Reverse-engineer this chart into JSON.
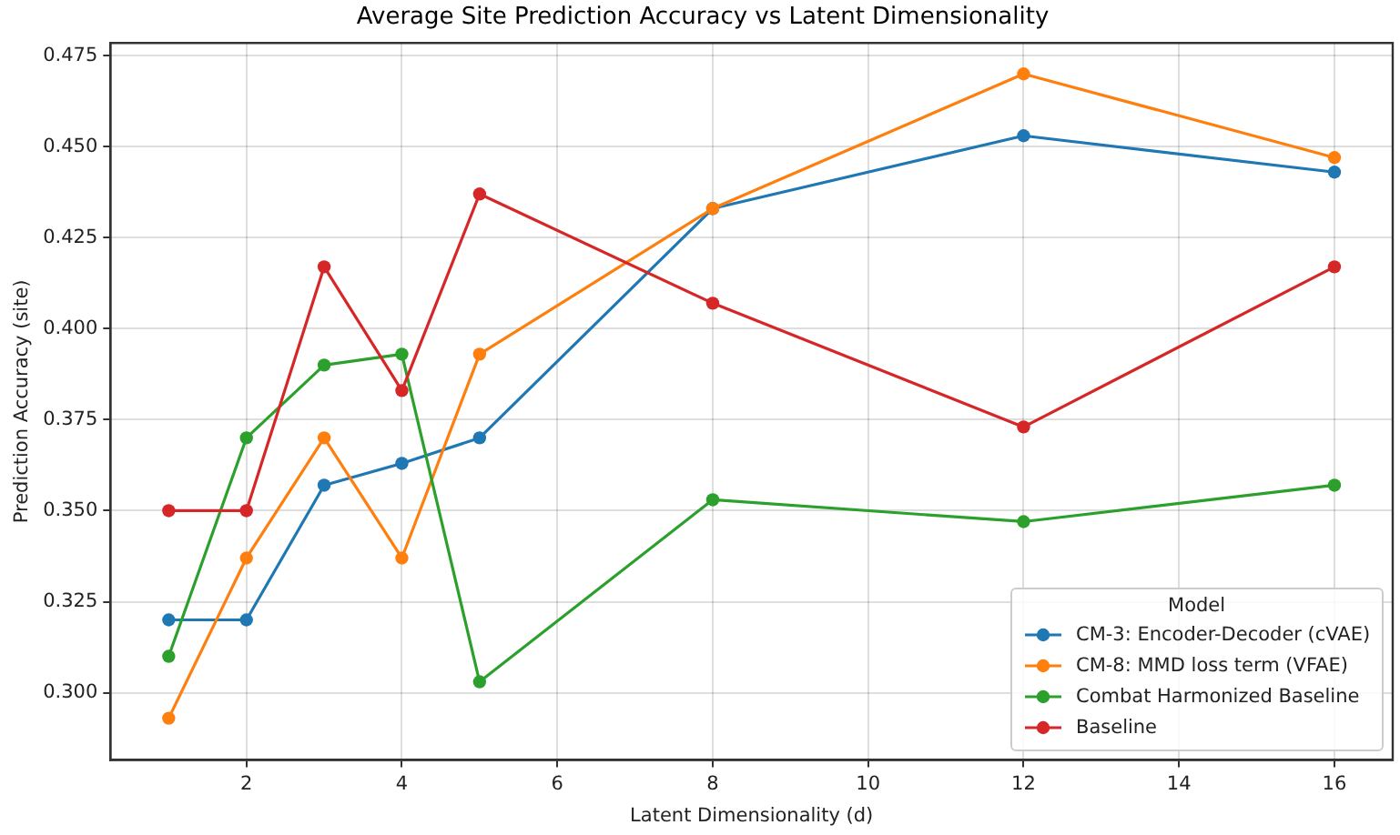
{
  "chart_data": {
    "type": "line",
    "title": "Average Site Prediction Accuracy vs Latent Dimensionality",
    "xlabel": "Latent Dimensionality (d)",
    "ylabel": "Prediction Accuracy (site)",
    "legend_title": "Model",
    "x": [
      1,
      2,
      3,
      4,
      5,
      8,
      12,
      16
    ],
    "series": [
      {
        "name": "CM-3: Encoder-Decoder (cVAE)",
        "color": "#1f77b4",
        "values": [
          0.32,
          0.32,
          0.357,
          0.363,
          0.37,
          0.433,
          0.453,
          0.443
        ]
      },
      {
        "name": "CM-8: MMD loss term (VFAE)",
        "color": "#ff7f0e",
        "values": [
          0.293,
          0.337,
          0.37,
          0.337,
          0.393,
          0.433,
          0.47,
          0.447
        ]
      },
      {
        "name": "Combat Harmonized Baseline",
        "color": "#2ca02c",
        "values": [
          0.31,
          0.37,
          0.39,
          0.393,
          0.303,
          0.353,
          0.347,
          0.357
        ]
      },
      {
        "name": "Baseline",
        "color": "#d62728",
        "values": [
          0.35,
          0.35,
          0.417,
          0.383,
          0.437,
          0.407,
          0.373,
          0.417
        ]
      }
    ],
    "xlim": [
      0.25,
      16.75
    ],
    "ylim": [
      0.2815,
      0.4785
    ],
    "xticks": [
      2,
      4,
      6,
      8,
      10,
      12,
      14,
      16
    ],
    "yticks": [
      {
        "value": 0.3,
        "label": "0.300"
      },
      {
        "value": 0.325,
        "label": "0.325"
      },
      {
        "value": 0.35,
        "label": "0.350"
      },
      {
        "value": 0.375,
        "label": "0.375"
      },
      {
        "value": 0.4,
        "label": "0.400"
      },
      {
        "value": 0.425,
        "label": "0.425"
      },
      {
        "value": 0.45,
        "label": "0.450"
      },
      {
        "value": 0.475,
        "label": "0.475"
      }
    ],
    "grid": true,
    "legend": "bottom right",
    "marker": "circle",
    "line_style": "solid"
  }
}
